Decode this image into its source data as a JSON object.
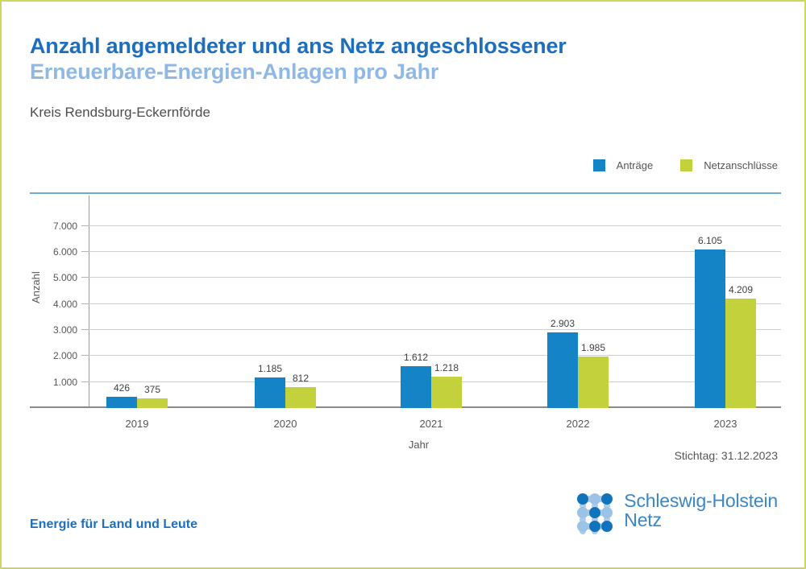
{
  "page": {
    "border_color": "#ccd95b",
    "background": "#ffffff"
  },
  "header": {
    "title_line1": "Anzahl angemeldeter und ans Netz angeschlossener",
    "title_line2": "Erneuerbare-Energien-Anlagen pro Jahr",
    "subtitle": "Kreis Rendsburg-Eckernförde"
  },
  "legend": {
    "items": [
      {
        "label": "Anträge",
        "color": "#1484c6"
      },
      {
        "label": "Netzanschlüsse",
        "color": "#c3d23c"
      }
    ]
  },
  "chart_data": {
    "type": "bar",
    "title": "Anzahl angemeldeter und ans Netz angeschlossener Erneuerbare-Energien-Anlagen pro Jahr",
    "subtitle": "Kreis Rendsburg-Eckernförde",
    "categories": [
      "2019",
      "2020",
      "2021",
      "2022",
      "2023"
    ],
    "series": [
      {
        "name": "Anträge",
        "color": "#1484c6",
        "values": [
          426,
          1185,
          1612,
          2903,
          6105
        ],
        "labels": [
          "426",
          "1.185",
          "1.612",
          "2.903",
          "6.105"
        ]
      },
      {
        "name": "Netzanschlüsse",
        "color": "#c3d23c",
        "values": [
          375,
          812,
          1218,
          1985,
          4209
        ],
        "labels": [
          "375",
          "812",
          "1.218",
          "1.985",
          "4.209"
        ]
      }
    ],
    "xlabel": "Jahr",
    "ylabel": "Anzahl",
    "ylim": [
      0,
      7500
    ],
    "yticks": [
      1000,
      2000,
      3000,
      4000,
      5000,
      6000,
      7000
    ],
    "ytick_labels": [
      "1.000",
      "2.000",
      "3.000",
      "4.000",
      "5.000",
      "6.000",
      "7.000"
    ],
    "grid": true,
    "legend_position": "top-right"
  },
  "footer": {
    "stichtag": "Stichtag: 31.12.2023",
    "tagline": "Energie für Land und Leute",
    "logo_line1": "Schleswig-Holstein",
    "logo_line2": "Netz"
  },
  "colors": {
    "title_primary": "#1d6fbd",
    "title_secondary": "#8fb9e4",
    "separator_line": "#6ea9d9",
    "logo_blue_dark": "#1173bb",
    "logo_blue_light": "#9cc3e6"
  }
}
